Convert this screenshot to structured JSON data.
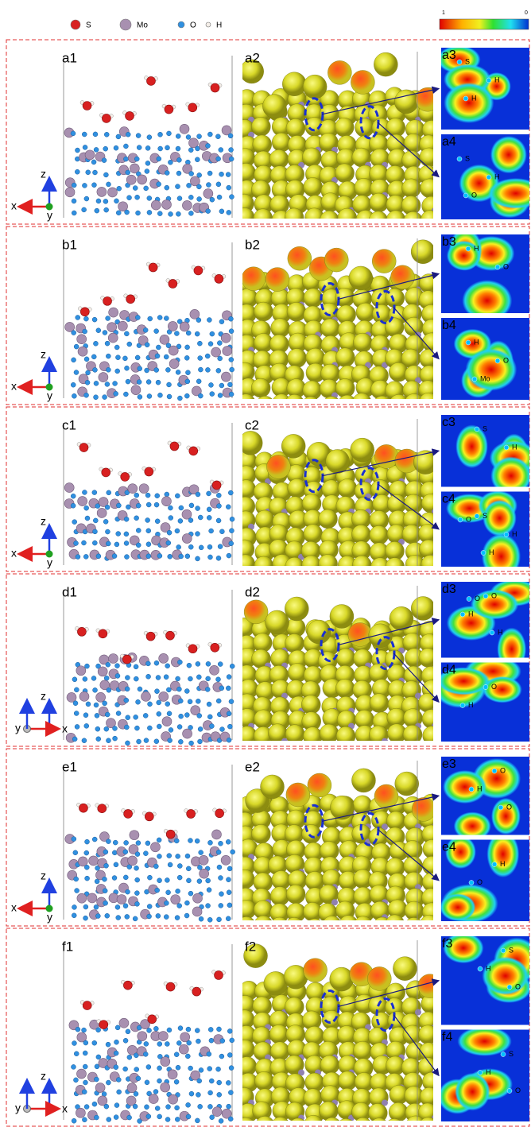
{
  "legend": {
    "items": [
      "S",
      "Mo",
      "O",
      "H"
    ],
    "colorbar_max": "1",
    "colorbar_min": "0"
  },
  "rows": [
    {
      "labels": [
        "a1",
        "a2",
        "a3",
        "a4"
      ],
      "axes": {
        "up": "z",
        "first": "x",
        "second": "y"
      },
      "map3": [
        "S",
        "H",
        "H"
      ],
      "map4": [
        "S",
        "H",
        "O"
      ]
    },
    {
      "labels": [
        "b1",
        "b2",
        "b3",
        "b4"
      ],
      "axes": {
        "up": "z",
        "first": "x",
        "second": "y"
      },
      "map3": [
        "H",
        "O"
      ],
      "map4": [
        "H",
        "O",
        "Mo"
      ]
    },
    {
      "labels": [
        "c1",
        "c2",
        "c3",
        "c4"
      ],
      "axes": {
        "up": "z",
        "first": "x",
        "second": "y"
      },
      "map3": [
        "S",
        "H"
      ],
      "map4": [
        "S",
        "H",
        "H",
        "O"
      ]
    },
    {
      "labels": [
        "d1",
        "d2",
        "d3",
        "d4"
      ],
      "axes": {
        "up": "z",
        "first": "y",
        "second": "x"
      },
      "map3": [
        "O",
        "H",
        "H",
        "O"
      ],
      "map4": [
        "O",
        "H"
      ]
    },
    {
      "labels": [
        "e1",
        "e2",
        "e3",
        "e4"
      ],
      "axes": {
        "up": "z",
        "first": "x",
        "second": "y"
      },
      "map3": [
        "O",
        "H",
        "O"
      ],
      "map4": [
        "H",
        "O"
      ]
    },
    {
      "labels": [
        "f1",
        "f2",
        "f3",
        "f4"
      ],
      "axes": {
        "up": "z",
        "first": "y",
        "second": "x"
      },
      "map3": [
        "S",
        "H",
        "O"
      ],
      "map4": [
        "S",
        "H",
        "O"
      ]
    }
  ]
}
